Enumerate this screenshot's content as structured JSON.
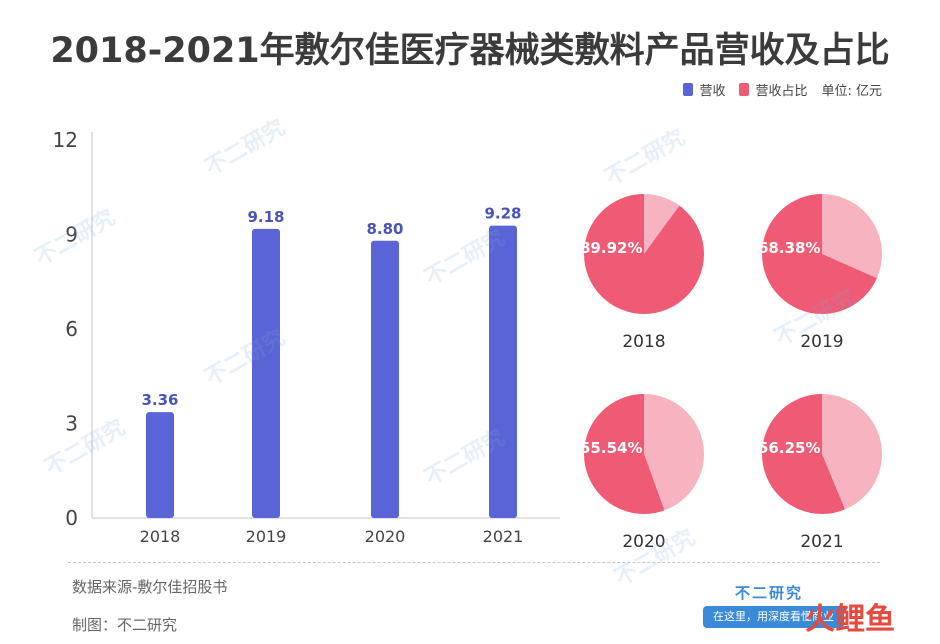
{
  "title": "2018-2021年敷尔佳医疗器械类敷料产品营收及占比",
  "legend": {
    "revenue": "营收",
    "share": "营收占比",
    "unit": "单位: 亿元"
  },
  "colors": {
    "bar": "#5a64d6",
    "bar_label": "#4a54b8",
    "pie_main": "#ef5a74",
    "pie_rest": "#f7b3c0"
  },
  "chart_data": [
    {
      "type": "bar",
      "categories": [
        "2018",
        "2019",
        "2020",
        "2021"
      ],
      "values": [
        3.36,
        9.18,
        8.8,
        9.28
      ],
      "value_labels": [
        "3.36",
        "9.18",
        "8.80",
        "9.28"
      ],
      "yticks": [
        "0",
        "3",
        "6",
        "9",
        "12"
      ],
      "ylim": [
        0,
        12
      ],
      "grid": false
    },
    {
      "type": "pie",
      "category": "2018",
      "values": [
        89.92,
        10.08
      ],
      "label": "89.92%"
    },
    {
      "type": "pie",
      "category": "2019",
      "values": [
        68.38,
        31.62
      ],
      "label": "68.38%"
    },
    {
      "type": "pie",
      "category": "2020",
      "values": [
        55.54,
        44.46
      ],
      "label": "55.54%"
    },
    {
      "type": "pie",
      "category": "2021",
      "values": [
        56.25,
        43.75
      ],
      "label": "56.25%"
    }
  ],
  "footer": {
    "source": "数据来源-敷尔佳招股书",
    "made_by": "制图：不二研究"
  },
  "brand": {
    "name": "不二研究",
    "tagline": "在这里，用深度看懂商业",
    "logo2": "火鲤鱼"
  },
  "watermark": "不二研究"
}
